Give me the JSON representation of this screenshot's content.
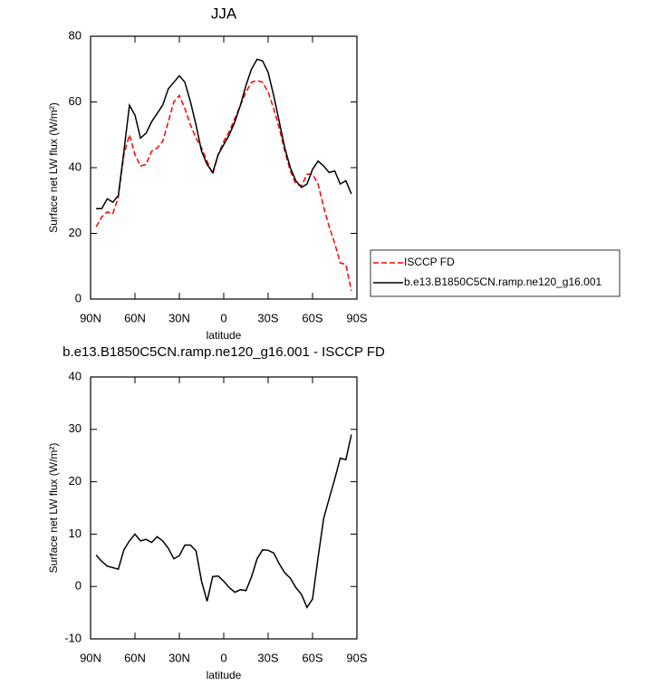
{
  "chart_data": [
    {
      "type": "line",
      "title": "JJA",
      "xlabel": "latitude",
      "ylabel": "Surface net LW flux (W/m²)",
      "x": [
        86.25,
        82.5,
        78.75,
        75,
        71.25,
        67.5,
        63.75,
        60,
        56.25,
        52.5,
        48.75,
        45,
        41.25,
        37.5,
        33.75,
        30,
        26.25,
        22.5,
        18.75,
        15,
        11.25,
        7.5,
        3.75,
        0,
        -3.75,
        -7.5,
        -11.25,
        -15,
        -18.75,
        -22.5,
        -26.25,
        -30,
        -33.75,
        -37.5,
        -41.25,
        -45,
        -48.75,
        -52.5,
        -56.25,
        -60,
        -63.75,
        -67.5,
        -71.25,
        -75,
        -78.75,
        -82.5,
        -86.25
      ],
      "series": [
        {
          "name": "ISCCP FD",
          "color": "#ff0000",
          "line_style": "dashed",
          "values": [
            22,
            25,
            26.5,
            26,
            31,
            44,
            50,
            44,
            40.5,
            41,
            45,
            46,
            48,
            54,
            60,
            62,
            58,
            53,
            49,
            46,
            42,
            38,
            44,
            48,
            51,
            55,
            59,
            63,
            66,
            66.5,
            66,
            63,
            58,
            52,
            45,
            39,
            35,
            34.5,
            38,
            38,
            35,
            28,
            22,
            17,
            11,
            10.5,
            2.5
          ]
        },
        {
          "name": "b.e13.B1850C5CN.ramp.ne120_g16.001",
          "color": "#000000",
          "line_style": "solid",
          "values": [
            27.5,
            27.5,
            30.5,
            29.5,
            31.5,
            45,
            59,
            56,
            49,
            50.5,
            54,
            56.5,
            59,
            64,
            66,
            68,
            66,
            60,
            53,
            45,
            41,
            38.5,
            44,
            47,
            50,
            54,
            59,
            65,
            70,
            73,
            72.5,
            69,
            62,
            54,
            46,
            40,
            36,
            34,
            35,
            39.5,
            42,
            40.5,
            38.5,
            39,
            35,
            36,
            32
          ]
        }
      ],
      "xlim": [
        90,
        -90
      ],
      "xticks": [
        {
          "value": 90,
          "label": "90N"
        },
        {
          "value": 60,
          "label": "60N"
        },
        {
          "value": 30,
          "label": "30N"
        },
        0,
        {
          "value": -30,
          "label": "30S"
        },
        {
          "value": -60,
          "label": "60S"
        },
        {
          "value": -90,
          "label": "90S"
        }
      ],
      "ylim": [
        0,
        80
      ],
      "yticks": [
        0,
        20,
        40,
        60,
        80
      ],
      "legend": "right"
    },
    {
      "type": "line",
      "title": "b.e13.B1850C5CN.ramp.ne120_g16.001 - ISCCP FD",
      "xlabel": "latitude",
      "ylabel": "Surface net LW flux (W/m²)",
      "x": [
        86.25,
        82.5,
        78.75,
        75,
        71.25,
        67.5,
        63.75,
        60,
        56.25,
        52.5,
        48.75,
        45,
        41.25,
        37.5,
        33.75,
        30,
        26.25,
        22.5,
        18.75,
        15,
        11.25,
        7.5,
        3.75,
        0,
        -3.75,
        -7.5,
        -11.25,
        -15,
        -18.75,
        -22.5,
        -26.25,
        -30,
        -33.75,
        -37.5,
        -41.25,
        -45,
        -48.75,
        -52.5,
        -56.25,
        -60,
        -63.75,
        -67.5,
        -71.25,
        -75,
        -78.75,
        -82.5,
        -86.25
      ],
      "values": [
        6,
        4.8,
        3.9,
        3.6,
        3.3,
        7,
        8.7,
        10,
        8.7,
        9,
        8.4,
        9.5,
        8.7,
        7.3,
        5.3,
        5.9,
        7.9,
        7.9,
        6.8,
        1,
        -2.8,
        1.9,
        2,
        1,
        -0.2,
        -1.1,
        -0.6,
        -0.8,
        1.8,
        5.3,
        7,
        6.9,
        6.4,
        4.3,
        2.6,
        1.6,
        -0.2,
        -1.5,
        -4,
        -2.4,
        5.5,
        13,
        16.8,
        20.5,
        24.5,
        24.2,
        29
      ],
      "color": "#000000",
      "xlim": [
        90,
        -90
      ],
      "xticks": [
        {
          "value": 90,
          "label": "90N"
        },
        {
          "value": 60,
          "label": "60N"
        },
        {
          "value": 30,
          "label": "30N"
        },
        0,
        {
          "value": -30,
          "label": "30S"
        },
        {
          "value": -60,
          "label": "60S"
        },
        {
          "value": -90,
          "label": "90S"
        }
      ],
      "ylim": [
        -10,
        40
      ],
      "yticks": [
        -10,
        0,
        10,
        20,
        30,
        40
      ]
    }
  ]
}
